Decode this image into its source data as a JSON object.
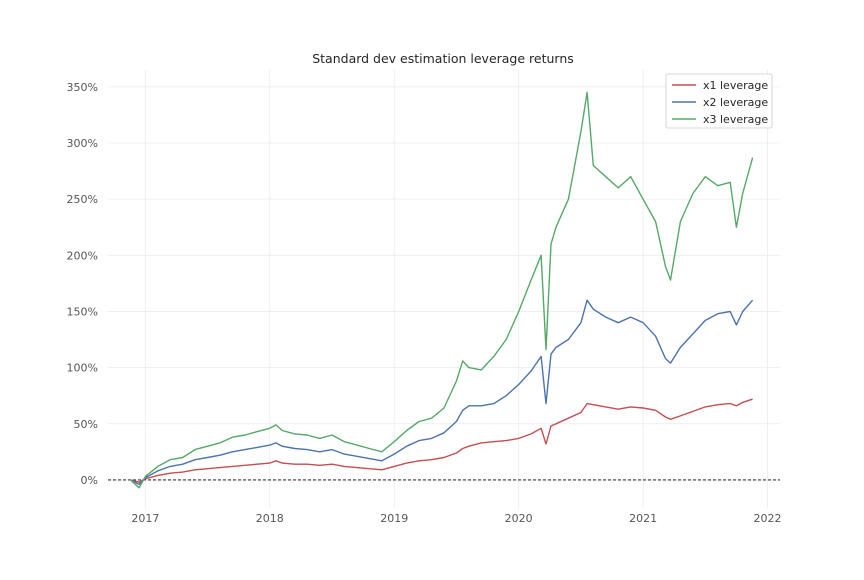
{
  "chart_data": {
    "type": "line",
    "title": "Standard dev estimation leverage returns",
    "xlabel": "",
    "ylabel": "",
    "xlim": [
      2016.7,
      2022.1
    ],
    "ylim": [
      -25,
      365
    ],
    "x_ticks": [
      2017,
      2018,
      2019,
      2020,
      2021,
      2022
    ],
    "x_tick_labels": [
      "2017",
      "2018",
      "2019",
      "2020",
      "2021",
      "2022"
    ],
    "y_ticks": [
      0,
      50,
      100,
      150,
      200,
      250,
      300,
      350
    ],
    "y_tick_labels": [
      "0%",
      "50%",
      "100%",
      "150%",
      "200%",
      "250%",
      "300%",
      "350%"
    ],
    "grid": true,
    "legend_position": "top-right",
    "baseline": 0,
    "x": [
      2016.88,
      2016.95,
      2017.0,
      2017.1,
      2017.2,
      2017.3,
      2017.4,
      2017.5,
      2017.6,
      2017.7,
      2017.8,
      2017.9,
      2018.0,
      2018.05,
      2018.1,
      2018.2,
      2018.3,
      2018.4,
      2018.5,
      2018.6,
      2018.7,
      2018.8,
      2018.9,
      2019.0,
      2019.1,
      2019.2,
      2019.3,
      2019.4,
      2019.5,
      2019.55,
      2019.6,
      2019.7,
      2019.8,
      2019.9,
      2020.0,
      2020.1,
      2020.18,
      2020.22,
      2020.26,
      2020.3,
      2020.4,
      2020.5,
      2020.55,
      2020.6,
      2020.7,
      2020.8,
      2020.9,
      2021.0,
      2021.1,
      2021.18,
      2021.22,
      2021.3,
      2021.4,
      2021.5,
      2021.6,
      2021.7,
      2021.75,
      2021.8,
      2021.88
    ],
    "series": [
      {
        "name": "x1 leverage",
        "color": "#c44e52",
        "values": [
          0,
          -2,
          1,
          4,
          6,
          7,
          9,
          10,
          11,
          12,
          13,
          14,
          15,
          17,
          15,
          14,
          14,
          13,
          14,
          12,
          11,
          10,
          9,
          12,
          15,
          17,
          18,
          20,
          24,
          28,
          30,
          33,
          34,
          35,
          37,
          41,
          46,
          32,
          48,
          50,
          55,
          60,
          68,
          67,
          65,
          63,
          65,
          64,
          62,
          56,
          54,
          57,
          61,
          65,
          67,
          68,
          66,
          69,
          72
        ]
      },
      {
        "name": "x2 leverage",
        "color": "#4c72b0",
        "values": [
          0,
          -4,
          2,
          8,
          12,
          14,
          18,
          20,
          22,
          25,
          27,
          29,
          31,
          33,
          30,
          28,
          27,
          25,
          27,
          23,
          21,
          19,
          17,
          23,
          30,
          35,
          37,
          42,
          52,
          62,
          66,
          66,
          68,
          75,
          85,
          97,
          110,
          68,
          112,
          118,
          125,
          140,
          160,
          152,
          145,
          140,
          145,
          140,
          128,
          108,
          104,
          118,
          130,
          142,
          148,
          150,
          138,
          150,
          160
        ]
      },
      {
        "name": "x3 leverage",
        "color": "#55a868",
        "values": [
          0,
          -7,
          3,
          12,
          18,
          20,
          27,
          30,
          33,
          38,
          40,
          43,
          46,
          49,
          44,
          41,
          40,
          37,
          40,
          34,
          31,
          28,
          25,
          34,
          44,
          52,
          55,
          64,
          88,
          106,
          100,
          98,
          110,
          125,
          150,
          178,
          200,
          116,
          210,
          225,
          250,
          310,
          345,
          280,
          270,
          260,
          270,
          250,
          230,
          190,
          178,
          230,
          255,
          270,
          262,
          265,
          225,
          255,
          287
        ]
      }
    ]
  }
}
